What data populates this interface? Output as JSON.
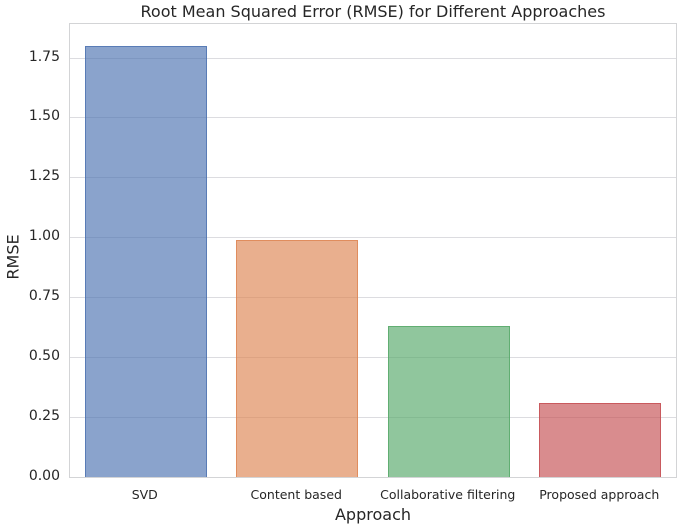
{
  "chart_data": {
    "type": "bar",
    "title": "Root Mean Squared Error (RMSE) for Different Approaches",
    "xlabel": "Approach",
    "ylabel": "RMSE",
    "categories": [
      "SVD",
      "Content based",
      "Collaborative filtering",
      "Proposed approach"
    ],
    "values": [
      1.8,
      0.99,
      0.63,
      0.31
    ],
    "bar_colors": [
      "#4C72B0",
      "#DD8452",
      "#55A868",
      "#C44E52"
    ],
    "bar_fill_alpha": 0.65,
    "bar_edge_alpha": 0.8,
    "yticks": [
      0.0,
      0.25,
      0.5,
      0.75,
      1.0,
      1.25,
      1.5,
      1.75
    ],
    "ytick_labels": [
      "0.00",
      "0.25",
      "0.50",
      "0.75",
      "1.00",
      "1.25",
      "1.50",
      "1.75"
    ],
    "ylim": [
      0,
      1.89
    ],
    "grid": "horizontal",
    "legend": "none",
    "background_color": "#ffffff",
    "grid_color": "#dcdce0",
    "spine_color": "#d3d4d6",
    "text_color": "#262626"
  }
}
